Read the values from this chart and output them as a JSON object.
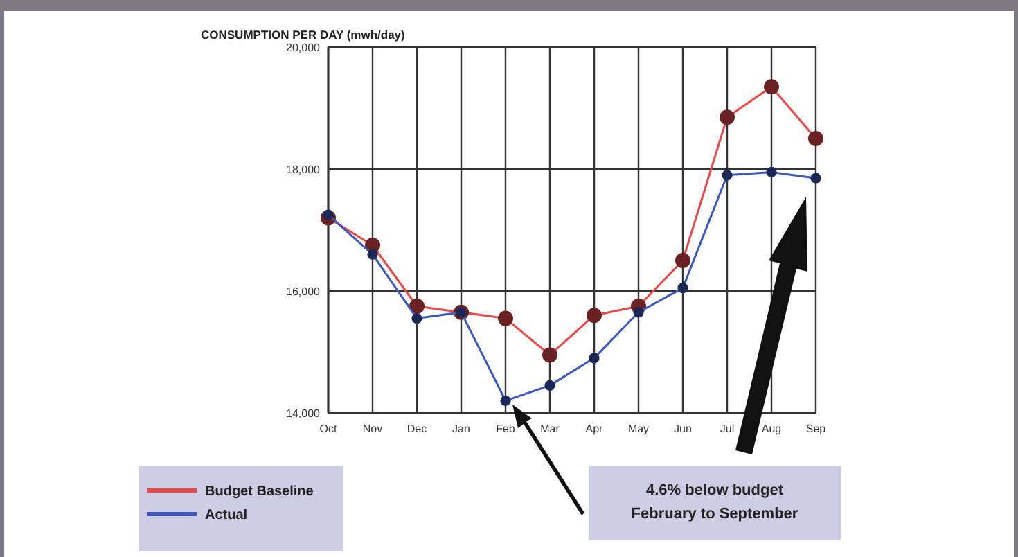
{
  "chart_data": {
    "type": "line",
    "title": "CONSUMPTION PER DAY  (mwh/day)",
    "categories": [
      "Oct",
      "Nov",
      "Dec",
      "Jan",
      "Feb",
      "Mar",
      "Apr",
      "May",
      "Jun",
      "Jul",
      "Aug",
      "Sep"
    ],
    "series": [
      {
        "name": "Budget Baseline",
        "color": "#e84848",
        "values": [
          17200,
          16750,
          15750,
          15650,
          15550,
          14950,
          15600,
          15750,
          16500,
          18850,
          19350,
          18500
        ]
      },
      {
        "name": "Actual",
        "color": "#3a58c0",
        "values": [
          17250,
          16600,
          15550,
          15650,
          14200,
          14450,
          14900,
          15650,
          16050,
          17900,
          17950,
          17850
        ]
      }
    ],
    "ylim": [
      14000,
      20000
    ],
    "yticks": [
      {
        "value": 14000,
        "label": "14,000"
      },
      {
        "value": 16000,
        "label": "16,000"
      },
      {
        "value": 18000,
        "label": "18,000"
      },
      {
        "value": 20000,
        "label": "20,000"
      }
    ],
    "grid": true,
    "legend": "bottom left",
    "marker": "circle",
    "line_style": "solid",
    "annotations": [
      "4.6% below budget\nFebruary to September"
    ]
  }
}
